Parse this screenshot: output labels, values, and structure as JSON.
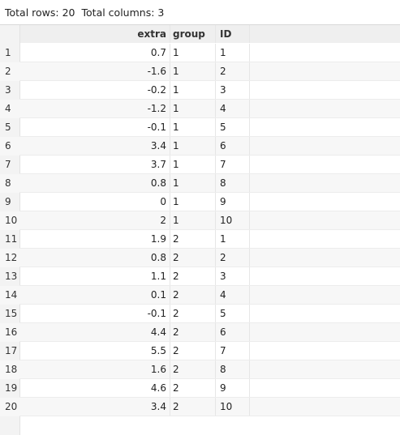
{
  "summary": {
    "rows_label": "Total rows: 20",
    "cols_label": "Total columns: 3"
  },
  "table": {
    "columns": [
      "extra",
      "group",
      "ID"
    ],
    "rows": [
      {
        "index": "1",
        "extra": "0.7",
        "group": "1",
        "id": "1"
      },
      {
        "index": "2",
        "extra": "-1.6",
        "group": "1",
        "id": "2"
      },
      {
        "index": "3",
        "extra": "-0.2",
        "group": "1",
        "id": "3"
      },
      {
        "index": "4",
        "extra": "-1.2",
        "group": "1",
        "id": "4"
      },
      {
        "index": "5",
        "extra": "-0.1",
        "group": "1",
        "id": "5"
      },
      {
        "index": "6",
        "extra": "3.4",
        "group": "1",
        "id": "6"
      },
      {
        "index": "7",
        "extra": "3.7",
        "group": "1",
        "id": "7"
      },
      {
        "index": "8",
        "extra": "0.8",
        "group": "1",
        "id": "8"
      },
      {
        "index": "9",
        "extra": "0",
        "group": "1",
        "id": "9"
      },
      {
        "index": "10",
        "extra": "2",
        "group": "1",
        "id": "10"
      },
      {
        "index": "11",
        "extra": "1.9",
        "group": "2",
        "id": "1"
      },
      {
        "index": "12",
        "extra": "0.8",
        "group": "2",
        "id": "2"
      },
      {
        "index": "13",
        "extra": "1.1",
        "group": "2",
        "id": "3"
      },
      {
        "index": "14",
        "extra": "0.1",
        "group": "2",
        "id": "4"
      },
      {
        "index": "15",
        "extra": "-0.1",
        "group": "2",
        "id": "5"
      },
      {
        "index": "16",
        "extra": "4.4",
        "group": "2",
        "id": "6"
      },
      {
        "index": "17",
        "extra": "5.5",
        "group": "2",
        "id": "7"
      },
      {
        "index": "18",
        "extra": "1.6",
        "group": "2",
        "id": "8"
      },
      {
        "index": "19",
        "extra": "4.6",
        "group": "2",
        "id": "9"
      },
      {
        "index": "20",
        "extra": "3.4",
        "group": "2",
        "id": "10"
      }
    ]
  }
}
